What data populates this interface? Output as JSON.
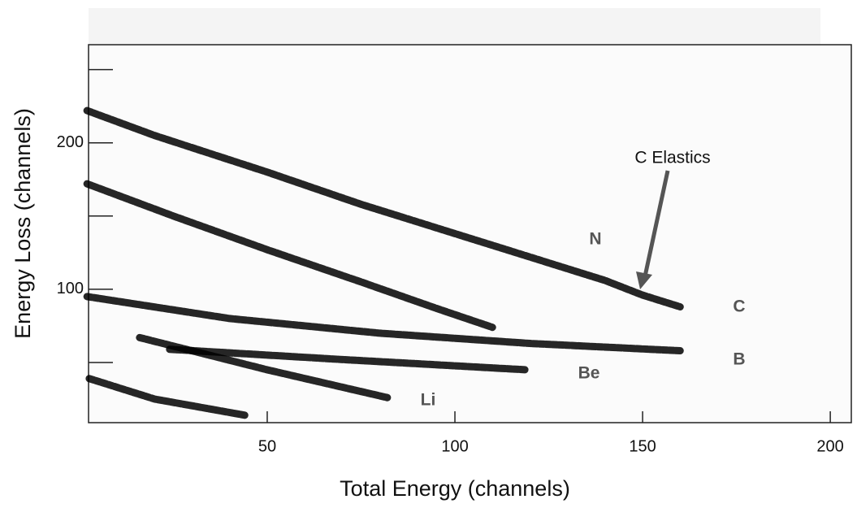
{
  "chart_data": {
    "type": "band",
    "x_label": "Total Energy (channels)",
    "y_label": "Energy Loss (channels)",
    "xlim": [
      2.4,
      205.6
    ],
    "ylim": [
      8.9,
      267
    ],
    "xticks": [
      50,
      100,
      150,
      200
    ],
    "yticks": [
      100,
      200
    ],
    "yminor": [
      50,
      150,
      250
    ],
    "color": "#000000",
    "series": [
      {
        "x": [
          2,
          20,
          50,
          75,
          100,
          125,
          140,
          150,
          160
        ],
        "y": [
          222,
          205,
          180,
          158,
          138,
          118,
          106,
          96,
          88
        ]
      },
      {
        "x": [
          2,
          25,
          50,
          75,
          95,
          110
        ],
        "y": [
          172,
          150,
          127,
          105,
          87,
          74
        ]
      },
      {
        "x": [
          2,
          40,
          80,
          120,
          160
        ],
        "y": [
          95,
          80,
          70,
          63,
          58
        ]
      },
      {
        "x": [
          16,
          50,
          82
        ],
        "y": [
          67,
          45,
          26
        ]
      },
      {
        "x": [
          24,
          70,
          119
        ],
        "y": [
          59,
          52,
          45
        ]
      },
      {
        "x": [
          2.6,
          20,
          44
        ],
        "y": [
          39,
          25,
          14
        ]
      }
    ],
    "annotations": [
      "C Elastics",
      "N",
      "C",
      "B",
      "Be",
      "Li"
    ]
  }
}
